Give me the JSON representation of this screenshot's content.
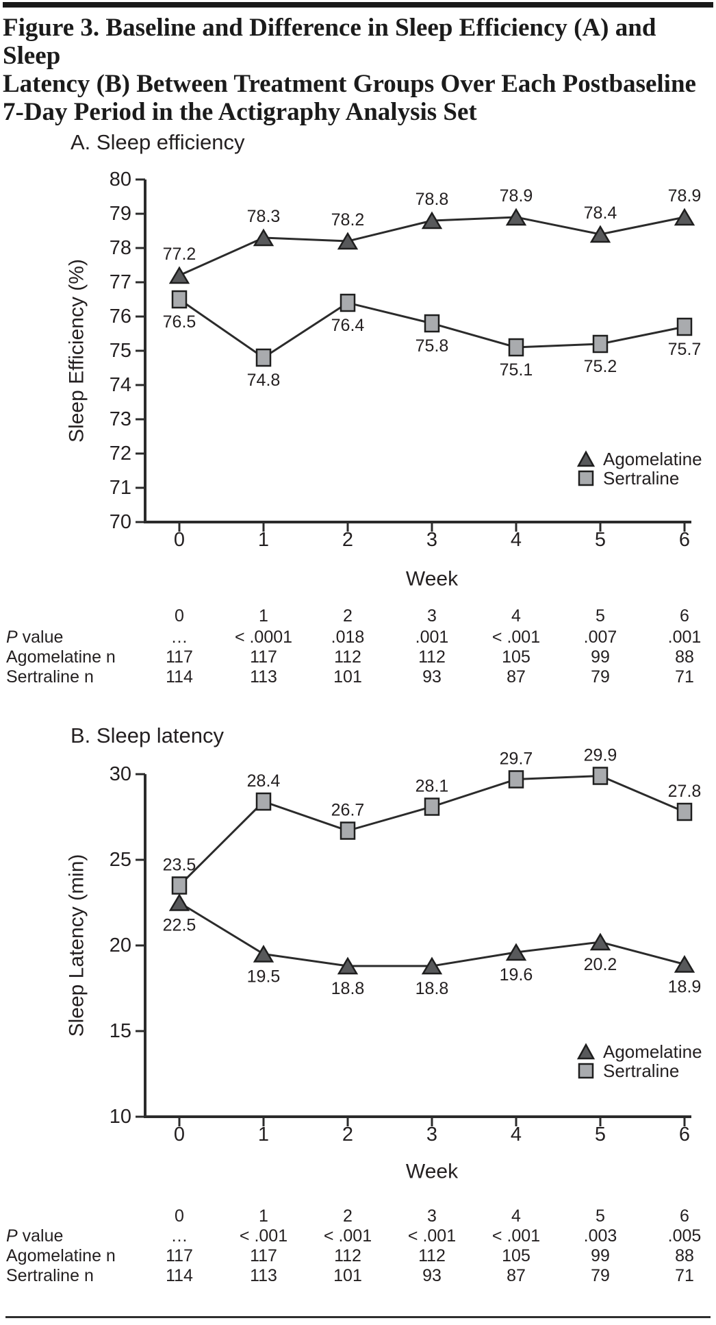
{
  "figure": {
    "title": "Figure 3. Baseline and Difference in Sleep Efficiency (A) and Sleep\nLatency (B) Between Treatment Groups Over Each Postbaseline\n7-Day Period in the Actigraphy Analysis Set"
  },
  "colors": {
    "agomelatine_marker": "#58595b",
    "sertraline_marker": "#a9abae",
    "line": "#2b2b2b",
    "text": "#231f20"
  },
  "chart_data": [
    {
      "id": "sleep-efficiency",
      "type": "line",
      "panel_label": "A. Sleep efficiency",
      "xlabel": "Week",
      "ylabel": "Sleep Efficiency (%)",
      "x": [
        0,
        1,
        2,
        3,
        4,
        5,
        6
      ],
      "ylim": [
        70,
        80
      ],
      "ytick_step": 1,
      "legend_position": "lower right",
      "series": [
        {
          "name": "Agomelatine",
          "marker": "triangle",
          "values": [
            77.2,
            78.3,
            78.2,
            78.8,
            78.9,
            78.4,
            78.9
          ],
          "labels": "above"
        },
        {
          "name": "Sertraline",
          "marker": "square",
          "values": [
            76.5,
            74.8,
            76.4,
            75.8,
            75.1,
            75.2,
            75.7
          ],
          "labels": "below"
        }
      ],
      "table": {
        "week_header": [
          "0",
          "1",
          "2",
          "3",
          "4",
          "5",
          "6"
        ],
        "rows": [
          {
            "label_parts": [
              {
                "text": "P",
                "italic": true
              },
              {
                "text": " value",
                "italic": false
              }
            ],
            "values": [
              "…",
              "< .0001",
              ".018",
              ".001",
              "< .001",
              ".007",
              ".001"
            ]
          },
          {
            "label_parts": [
              {
                "text": "Agomelatine n",
                "italic": false
              }
            ],
            "values": [
              "117",
              "117",
              "112",
              "112",
              "105",
              "99",
              "88"
            ]
          },
          {
            "label_parts": [
              {
                "text": "Sertraline n",
                "italic": false
              }
            ],
            "values": [
              "114",
              "113",
              "101",
              "93",
              "87",
              "79",
              "71"
            ]
          }
        ]
      }
    },
    {
      "id": "sleep-latency",
      "type": "line",
      "panel_label": "B. Sleep latency",
      "xlabel": "Week",
      "ylabel": "Sleep Latency (min)",
      "x": [
        0,
        1,
        2,
        3,
        4,
        5,
        6
      ],
      "ylim": [
        10,
        30
      ],
      "ytick_step": 5,
      "legend_position": "lower right",
      "series": [
        {
          "name": "Agomelatine",
          "marker": "triangle",
          "values": [
            22.5,
            19.5,
            18.8,
            18.8,
            19.6,
            20.2,
            18.9
          ],
          "labels": "below"
        },
        {
          "name": "Sertraline",
          "marker": "square",
          "values": [
            23.5,
            28.4,
            26.7,
            28.1,
            29.7,
            29.9,
            27.8
          ],
          "labels": "above"
        }
      ],
      "table": {
        "week_header": [
          "0",
          "1",
          "2",
          "3",
          "4",
          "5",
          "6"
        ],
        "rows": [
          {
            "label_parts": [
              {
                "text": "P",
                "italic": true
              },
              {
                "text": " value",
                "italic": false
              }
            ],
            "values": [
              "…",
              "< .001",
              "< .001",
              "< .001",
              "< .001",
              ".003",
              ".005"
            ]
          },
          {
            "label_parts": [
              {
                "text": "Agomelatine n",
                "italic": false
              }
            ],
            "values": [
              "117",
              "117",
              "112",
              "112",
              "105",
              "99",
              "88"
            ]
          },
          {
            "label_parts": [
              {
                "text": "Sertraline n",
                "italic": false
              }
            ],
            "values": [
              "114",
              "113",
              "101",
              "93",
              "87",
              "79",
              "71"
            ]
          }
        ]
      }
    }
  ]
}
